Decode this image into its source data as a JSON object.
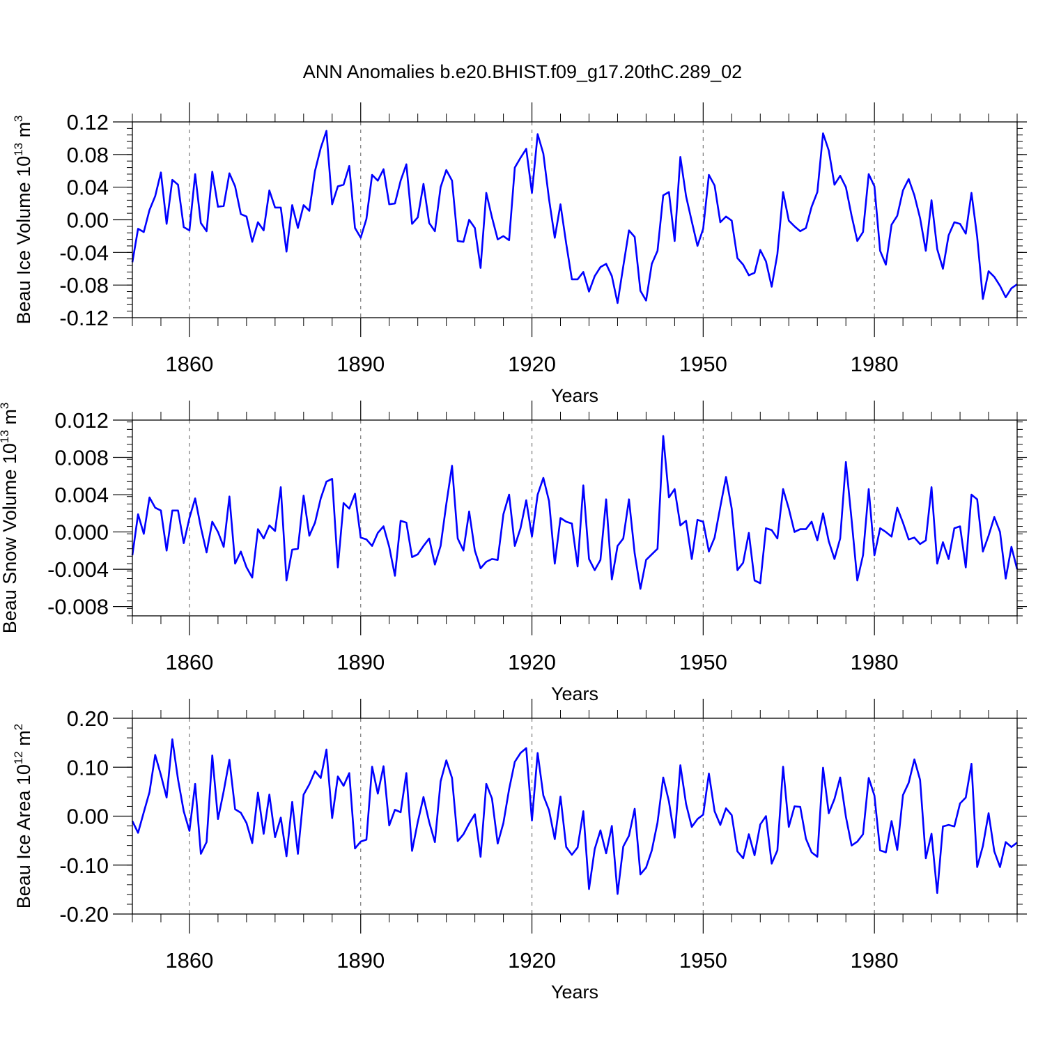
{
  "title": "ANN Anomalies b.e20.BHIST.f09_g17.20thC.289_02",
  "chart_data": [
    {
      "type": "line",
      "ylabel": "Beau Ice Volume 10",
      "ylabel_exp": "13",
      "ylabel_unit": " m",
      "ylabel_unit_exp": "3",
      "xlabel": "Years",
      "xlim": [
        1850,
        2005
      ],
      "ylim": [
        -0.12,
        0.12
      ],
      "yticks": [
        -0.12,
        -0.08,
        -0.04,
        0.0,
        0.04,
        0.08,
        0.12
      ],
      "ytick_labels": [
        "-0.12",
        "-0.08",
        "-0.04",
        "0.00",
        "0.04",
        "0.08",
        "0.12"
      ],
      "xticks": [
        1860,
        1890,
        1920,
        1950,
        1980
      ],
      "xtick_labels": [
        "1860",
        "1890",
        "1920",
        "1950",
        "1980"
      ],
      "line_color": "#0000ff",
      "x_start": 1850,
      "values": [
        -0.052,
        -0.011,
        -0.015,
        0.012,
        0.029,
        0.058,
        -0.005,
        0.049,
        0.043,
        -0.009,
        -0.013,
        0.056,
        -0.004,
        -0.014,
        0.059,
        0.016,
        0.017,
        0.057,
        0.041,
        0.007,
        0.004,
        -0.027,
        -0.003,
        -0.013,
        0.036,
        0.015,
        0.015,
        -0.039,
        0.018,
        -0.01,
        0.018,
        0.011,
        0.06,
        0.088,
        0.109,
        0.019,
        0.041,
        0.043,
        0.066,
        -0.01,
        -0.022,
        0.001,
        0.055,
        0.048,
        0.062,
        0.019,
        0.02,
        0.048,
        0.068,
        -0.005,
        0.003,
        0.044,
        -0.004,
        -0.014,
        0.04,
        0.061,
        0.048,
        -0.026,
        -0.027,
        0.0,
        -0.01,
        -0.059,
        0.033,
        0.003,
        -0.024,
        -0.02,
        -0.025,
        0.064,
        0.076,
        0.087,
        0.033,
        0.105,
        0.081,
        0.025,
        -0.022,
        0.019,
        -0.029,
        -0.073,
        -0.073,
        -0.064,
        -0.088,
        -0.069,
        -0.058,
        -0.054,
        -0.069,
        -0.102,
        -0.057,
        -0.013,
        -0.021,
        -0.087,
        -0.099,
        -0.054,
        -0.038,
        0.03,
        0.034,
        -0.026,
        0.077,
        0.029,
        -0.002,
        -0.032,
        -0.011,
        0.055,
        0.042,
        -0.003,
        0.004,
        -0.001,
        -0.047,
        -0.055,
        -0.068,
        -0.065,
        -0.037,
        -0.051,
        -0.082,
        -0.042,
        0.034,
        -0.001,
        -0.008,
        -0.014,
        -0.01,
        0.016,
        0.034,
        0.106,
        0.085,
        0.043,
        0.054,
        0.04,
        0.005,
        -0.026,
        -0.015,
        0.056,
        0.041,
        -0.038,
        -0.055,
        -0.006,
        0.005,
        0.036,
        0.05,
        0.03,
        0.002,
        -0.038,
        0.024,
        -0.036,
        -0.06,
        -0.019,
        -0.003,
        -0.005,
        -0.017,
        0.033,
        -0.021,
        -0.097,
        -0.063,
        -0.07,
        -0.081,
        -0.095,
        -0.084,
        -0.079
      ]
    },
    {
      "type": "line",
      "ylabel": "Beau Snow Volume 10",
      "ylabel_exp": "13",
      "ylabel_unit": " m",
      "ylabel_unit_exp": "3",
      "xlabel": "Years",
      "xlim": [
        1850,
        2005
      ],
      "ylim": [
        -0.009,
        0.012
      ],
      "yticks": [
        -0.008,
        -0.004,
        0.0,
        0.004,
        0.008,
        0.012
      ],
      "ytick_labels": [
        "-0.008",
        "-0.004",
        "0.000",
        "0.004",
        "0.008",
        "0.012"
      ],
      "xticks": [
        1860,
        1890,
        1920,
        1950,
        1980
      ],
      "xtick_labels": [
        "1860",
        "1890",
        "1920",
        "1950",
        "1980"
      ],
      "line_color": "#0000ff",
      "x_start": 1850,
      "values": [
        -0.0025,
        0.0019,
        -0.0002,
        0.0037,
        0.0026,
        0.0023,
        -0.002,
        0.0023,
        0.0023,
        -0.0012,
        0.0015,
        0.0036,
        0.0005,
        -0.0022,
        0.0011,
        0.0,
        -0.0016,
        0.0038,
        -0.0034,
        -0.0021,
        -0.0038,
        -0.0049,
        0.0003,
        -0.0007,
        0.0007,
        0.0001,
        0.0048,
        -0.0052,
        -0.0019,
        -0.0018,
        0.0039,
        -0.0004,
        0.001,
        0.0036,
        0.0054,
        0.0057,
        -0.0038,
        0.0031,
        0.0025,
        0.0041,
        -0.0006,
        -0.0008,
        -0.0015,
        -0.0001,
        0.0006,
        -0.0016,
        -0.0047,
        0.0012,
        0.001,
        -0.0027,
        -0.0024,
        -0.0015,
        -0.0007,
        -0.0035,
        -0.0015,
        0.003,
        0.0071,
        -0.0007,
        -0.002,
        0.0022,
        -0.002,
        -0.0039,
        -0.0032,
        -0.0029,
        -0.003,
        0.0019,
        0.004,
        -0.0015,
        0.0004,
        0.0034,
        -0.0005,
        0.004,
        0.0058,
        0.0033,
        -0.0034,
        0.0015,
        0.0011,
        0.0009,
        -0.0037,
        0.005,
        -0.0029,
        -0.0041,
        -0.003,
        0.0035,
        -0.0051,
        -0.0015,
        -0.0007,
        0.0035,
        -0.0023,
        -0.0061,
        -0.003,
        -0.0024,
        -0.0018,
        0.0103,
        0.0037,
        0.0046,
        0.0007,
        0.0012,
        -0.0029,
        0.0013,
        0.0011,
        -0.0021,
        -0.0006,
        0.0027,
        0.0059,
        0.0025,
        -0.0041,
        -0.0033,
        -0.0001,
        -0.0052,
        -0.0055,
        0.0004,
        0.0002,
        -0.0007,
        0.0046,
        0.0025,
        0.0,
        0.0003,
        0.0003,
        0.0011,
        -0.0009,
        0.002,
        -0.001,
        -0.0029,
        -0.0007,
        0.0075,
        0.0013,
        -0.0052,
        -0.0025,
        0.0046,
        -0.0025,
        0.0004,
        0.0,
        -0.0005,
        0.0026,
        0.001,
        -0.0008,
        -0.0006,
        -0.0013,
        -0.0009,
        0.0048,
        -0.0034,
        -0.0011,
        -0.0029,
        0.0004,
        0.0006,
        -0.0038,
        0.004,
        0.0035,
        -0.0021,
        -0.0004,
        0.0016,
        0.0,
        -0.005,
        -0.0016,
        -0.004
      ]
    },
    {
      "type": "line",
      "ylabel": "Beau Ice Area 10",
      "ylabel_exp": "12",
      "ylabel_unit": " m",
      "ylabel_unit_exp": "2",
      "xlabel": "Years",
      "xlim": [
        1850,
        2005
      ],
      "ylim": [
        -0.2,
        0.2
      ],
      "yticks": [
        -0.2,
        -0.1,
        0.0,
        0.1,
        0.2
      ],
      "ytick_labels": [
        "-0.20",
        "-0.10",
        "0.00",
        "0.10",
        "0.20"
      ],
      "xticks": [
        1860,
        1890,
        1920,
        1950,
        1980
      ],
      "xtick_labels": [
        "1860",
        "1890",
        "1920",
        "1950",
        "1980"
      ],
      "line_color": "#0000ff",
      "x_start": 1850,
      "values": [
        -0.01,
        -0.034,
        0.008,
        0.049,
        0.125,
        0.084,
        0.038,
        0.157,
        0.075,
        0.01,
        -0.03,
        0.066,
        -0.077,
        -0.053,
        0.124,
        -0.006,
        0.051,
        0.115,
        0.014,
        0.007,
        -0.014,
        -0.055,
        0.048,
        -0.036,
        0.044,
        -0.043,
        -0.003,
        -0.082,
        0.029,
        -0.077,
        0.044,
        0.065,
        0.092,
        0.078,
        0.136,
        -0.004,
        0.081,
        0.062,
        0.088,
        -0.066,
        -0.052,
        -0.048,
        0.101,
        0.046,
        0.102,
        -0.019,
        0.013,
        0.008,
        0.088,
        -0.071,
        -0.012,
        0.039,
        -0.012,
        -0.053,
        0.071,
        0.114,
        0.078,
        -0.051,
        -0.037,
        -0.015,
        0.004,
        -0.083,
        0.066,
        0.036,
        -0.056,
        -0.014,
        0.055,
        0.111,
        0.129,
        0.139,
        -0.009,
        0.129,
        0.042,
        0.012,
        -0.047,
        0.04,
        -0.063,
        -0.079,
        -0.064,
        0.01,
        -0.149,
        -0.067,
        -0.029,
        -0.076,
        -0.02,
        -0.159,
        -0.062,
        -0.04,
        0.015,
        -0.119,
        -0.105,
        -0.07,
        -0.013,
        0.079,
        0.03,
        -0.044,
        0.104,
        0.025,
        -0.022,
        -0.006,
        0.003,
        0.087,
        0.01,
        -0.018,
        0.016,
        0.002,
        -0.072,
        -0.086,
        -0.037,
        -0.08,
        -0.017,
        0.0,
        -0.097,
        -0.07,
        0.101,
        -0.022,
        0.02,
        0.019,
        -0.046,
        -0.074,
        -0.083,
        0.099,
        0.006,
        0.035,
        0.079,
        -0.001,
        -0.06,
        -0.052,
        -0.037,
        0.078,
        0.042,
        -0.07,
        -0.074,
        -0.01,
        -0.069,
        0.043,
        0.068,
        0.116,
        0.074,
        -0.086,
        -0.036,
        -0.157,
        -0.021,
        -0.018,
        -0.021,
        0.026,
        0.038,
        0.107,
        -0.104,
        -0.061,
        0.006,
        -0.072,
        -0.104,
        -0.053,
        -0.063,
        -0.054
      ]
    }
  ]
}
